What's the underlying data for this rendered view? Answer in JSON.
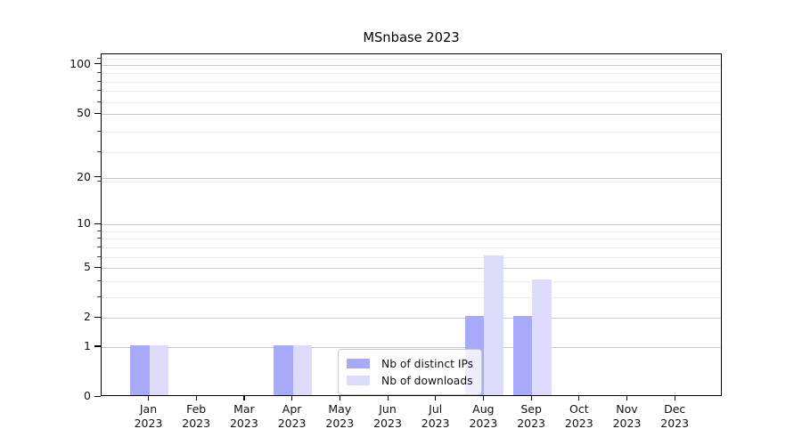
{
  "chart_data": {
    "type": "bar",
    "title": "MSnbase 2023",
    "x_year_label": "2023",
    "categories": [
      "Jan",
      "Feb",
      "Mar",
      "Apr",
      "May",
      "Jun",
      "Jul",
      "Aug",
      "Sep",
      "Oct",
      "Nov",
      "Dec"
    ],
    "series": [
      {
        "name": "Nb of distinct IPs",
        "color": "#a9a9fa",
        "values": [
          1,
          0,
          0,
          1,
          0,
          0,
          0,
          2,
          2,
          0,
          0,
          0
        ]
      },
      {
        "name": "Nb of downloads",
        "color": "#dcdcfa",
        "values": [
          1,
          0,
          0,
          1,
          0,
          0,
          0,
          6,
          4,
          0,
          0,
          0
        ]
      }
    ],
    "y_scale": "log10(1+x)",
    "y_ticks": [
      0,
      1,
      2,
      5,
      10,
      20,
      50,
      100
    ],
    "y_minor_gridlines": [
      3,
      4,
      6,
      7,
      8,
      9,
      19,
      29,
      39,
      59,
      69,
      79,
      89,
      109
    ],
    "ylim": [
      0,
      115
    ],
    "grid": "horizontal",
    "legend_position": "inside-bottom-center",
    "colors": {
      "major_grid": "#c9c9c9",
      "minor_grid": "#ededed",
      "spine": "#000000",
      "text": "#111111",
      "background": "#ffffff"
    }
  }
}
